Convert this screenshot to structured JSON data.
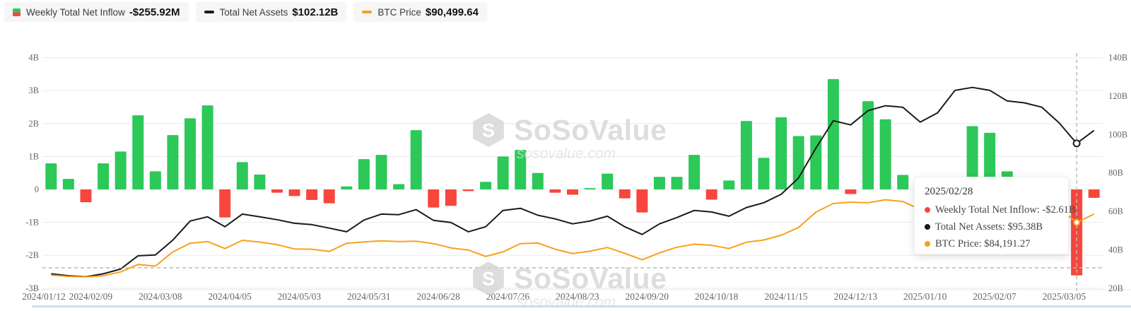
{
  "legend": {
    "items": [
      {
        "id": "inflow",
        "label": "Weekly Total Net Inflow",
        "value": "-$255.92M"
      },
      {
        "id": "assets",
        "label": "Total Net Assets",
        "value": "$102.12B"
      },
      {
        "id": "btc",
        "label": "BTC Price",
        "value": "$90,499.64"
      }
    ]
  },
  "tooltip": {
    "date": "2025/02/28",
    "separator": ": ",
    "rows": [
      {
        "label": "Weekly Total Net Inflow",
        "value": "-$2.61B",
        "color": "#F7463C"
      },
      {
        "label": "Total Net Assets",
        "value": "$95.38B",
        "color": "#1a1a1a"
      },
      {
        "label": "BTC Price",
        "value": "$84,191.27",
        "color": "#F9A01B"
      }
    ]
  },
  "watermark": {
    "title": "SoSoValue",
    "subtitle": "sosovalue.com"
  },
  "colors": {
    "bar_positive": "#2CC858",
    "bar_negative": "#F7463C",
    "assets_line": "#1a1a1a",
    "btc_line": "#F9A01B",
    "grid": "#ececec",
    "axis_text": "#666666",
    "crosshair": "#bbbbbb"
  },
  "chart_data": {
    "type": "combo",
    "categories": [
      "2024/01/12",
      "2024/01/19",
      "2024/01/26",
      "2024/02/02",
      "2024/02/09",
      "2024/02/16",
      "2024/02/23",
      "2024/03/01",
      "2024/03/08",
      "2024/03/15",
      "2024/03/22",
      "2024/03/29",
      "2024/04/05",
      "2024/04/12",
      "2024/04/19",
      "2024/04/26",
      "2024/05/03",
      "2024/05/10",
      "2024/05/17",
      "2024/05/24",
      "2024/05/31",
      "2024/06/07",
      "2024/06/14",
      "2024/06/21",
      "2024/06/28",
      "2024/07/05",
      "2024/07/12",
      "2024/07/19",
      "2024/07/26",
      "2024/08/02",
      "2024/08/09",
      "2024/08/16",
      "2024/08/23",
      "2024/08/30",
      "2024/09/06",
      "2024/09/13",
      "2024/09/20",
      "2024/09/27",
      "2024/10/04",
      "2024/10/11",
      "2024/10/18",
      "2024/10/25",
      "2024/11/01",
      "2024/11/08",
      "2024/11/15",
      "2024/11/22",
      "2024/11/29",
      "2024/12/06",
      "2024/12/13",
      "2024/12/20",
      "2024/12/27",
      "2025/01/03",
      "2025/01/10",
      "2025/01/17",
      "2025/01/24",
      "2025/01/31",
      "2025/02/07",
      "2025/02/14",
      "2025/02/21",
      "2025/02/28",
      "2025/03/05"
    ],
    "series": [
      {
        "name": "Weekly Total Net Inflow",
        "type": "bar",
        "axis": "left",
        "unit": "B USD",
        "values": [
          0.79,
          0.32,
          -0.39,
          0.79,
          1.15,
          2.25,
          0.55,
          1.65,
          2.16,
          2.55,
          -0.85,
          0.83,
          0.45,
          -0.1,
          -0.2,
          -0.32,
          -0.42,
          0.09,
          0.92,
          1.05,
          0.16,
          1.8,
          -0.55,
          -0.5,
          -0.05,
          0.23,
          1.0,
          1.2,
          0.5,
          -0.1,
          -0.16,
          0.04,
          0.48,
          -0.27,
          -0.7,
          0.38,
          0.38,
          1.05,
          -0.31,
          0.27,
          2.08,
          0.96,
          2.19,
          1.62,
          1.64,
          3.35,
          -0.14,
          2.68,
          2.13,
          0.44,
          0.1,
          -0.35,
          0.2,
          1.92,
          1.72,
          0.55,
          0.2,
          -0.58,
          -0.56,
          -2.61,
          -0.256
        ]
      },
      {
        "name": "Total Net Assets",
        "type": "line",
        "axis": "right",
        "unit": "B USD",
        "values": [
          27.5,
          26.5,
          26.0,
          27.5,
          30.0,
          36.9,
          37.3,
          45.0,
          55.0,
          57.2,
          52.0,
          58.6,
          57.2,
          55.7,
          53.8,
          53.1,
          51.3,
          49.4,
          55.5,
          58.6,
          58.3,
          60.9,
          55.3,
          54.2,
          49.4,
          52.0,
          60.5,
          61.6,
          58.0,
          56.1,
          53.5,
          55.0,
          57.5,
          52.0,
          48.0,
          53.5,
          56.8,
          60.5,
          59.7,
          57.5,
          62.0,
          64.5,
          68.9,
          77.4,
          93.0,
          107.2,
          105.0,
          112.4,
          115.0,
          114.2,
          106.5,
          111.3,
          123.0,
          124.5,
          123.0,
          117.5,
          116.5,
          114.2,
          106.0,
          95.38,
          102.12
        ]
      },
      {
        "name": "BTC Price",
        "type": "line",
        "axis": "hidden-right",
        "unit": "k USD",
        "values": [
          44.5,
          43.5,
          43.1,
          44.0,
          46.9,
          52.5,
          51.3,
          62.0,
          68.5,
          69.8,
          64.5,
          70.7,
          69.4,
          67.5,
          64.2,
          64.0,
          62.3,
          68.5,
          69.5,
          70.3,
          69.8,
          70.1,
          68.2,
          65.0,
          63.4,
          58.6,
          62.0,
          68.2,
          68.7,
          64.0,
          60.7,
          62.5,
          65.3,
          61.0,
          56.0,
          61.3,
          65.5,
          67.8,
          67.0,
          64.5,
          69.3,
          71.0,
          74.5,
          80.4,
          92.0,
          98.5,
          99.5,
          99.0,
          101.3,
          100.0,
          94.0,
          98.0,
          94.5,
          104.0,
          105.0,
          102.0,
          96.5,
          96.0,
          95.0,
          84.191,
          90.5
        ]
      }
    ],
    "left_axis": {
      "ticks": [
        "4B",
        "3B",
        "2B",
        "1B",
        "0",
        "-1B",
        "-2B",
        "-3B"
      ],
      "tick_values": [
        4,
        3,
        2,
        1,
        0,
        -1,
        -2,
        -3
      ],
      "range": [
        -3,
        4
      ]
    },
    "right_axis": {
      "ticks": [
        "140B",
        "120B",
        "100B",
        "80B",
        "60B",
        "40B",
        "20B"
      ],
      "tick_values": [
        140,
        120,
        100,
        80,
        60,
        40,
        20
      ],
      "range": [
        20,
        140
      ]
    },
    "btc_axis_range_k": [
      34.6,
      208.4
    ],
    "x_tick_every": 4,
    "grid": true,
    "legend_position": "top-left",
    "crosshair": {
      "index": 59,
      "h_line_left_axis_value": -2.38
    }
  }
}
